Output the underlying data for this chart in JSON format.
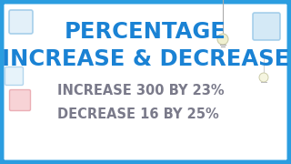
{
  "title_line1": "PERCENTAGE",
  "title_line2": "INCREASE & DECREASE",
  "subtitle_line1": "INCREASE 300 BY 23%",
  "subtitle_line2": "DECREASE 16 BY 25%",
  "bg_color": "#e8f4fb",
  "inner_bg": "#ffffff",
  "border_color": "#2b9de0",
  "title_color": "#1a82d4",
  "subtitle_color": "#7a7a8a",
  "border_width": 5,
  "title_fontsize": 17.5,
  "subtitle_fontsize": 10.5
}
